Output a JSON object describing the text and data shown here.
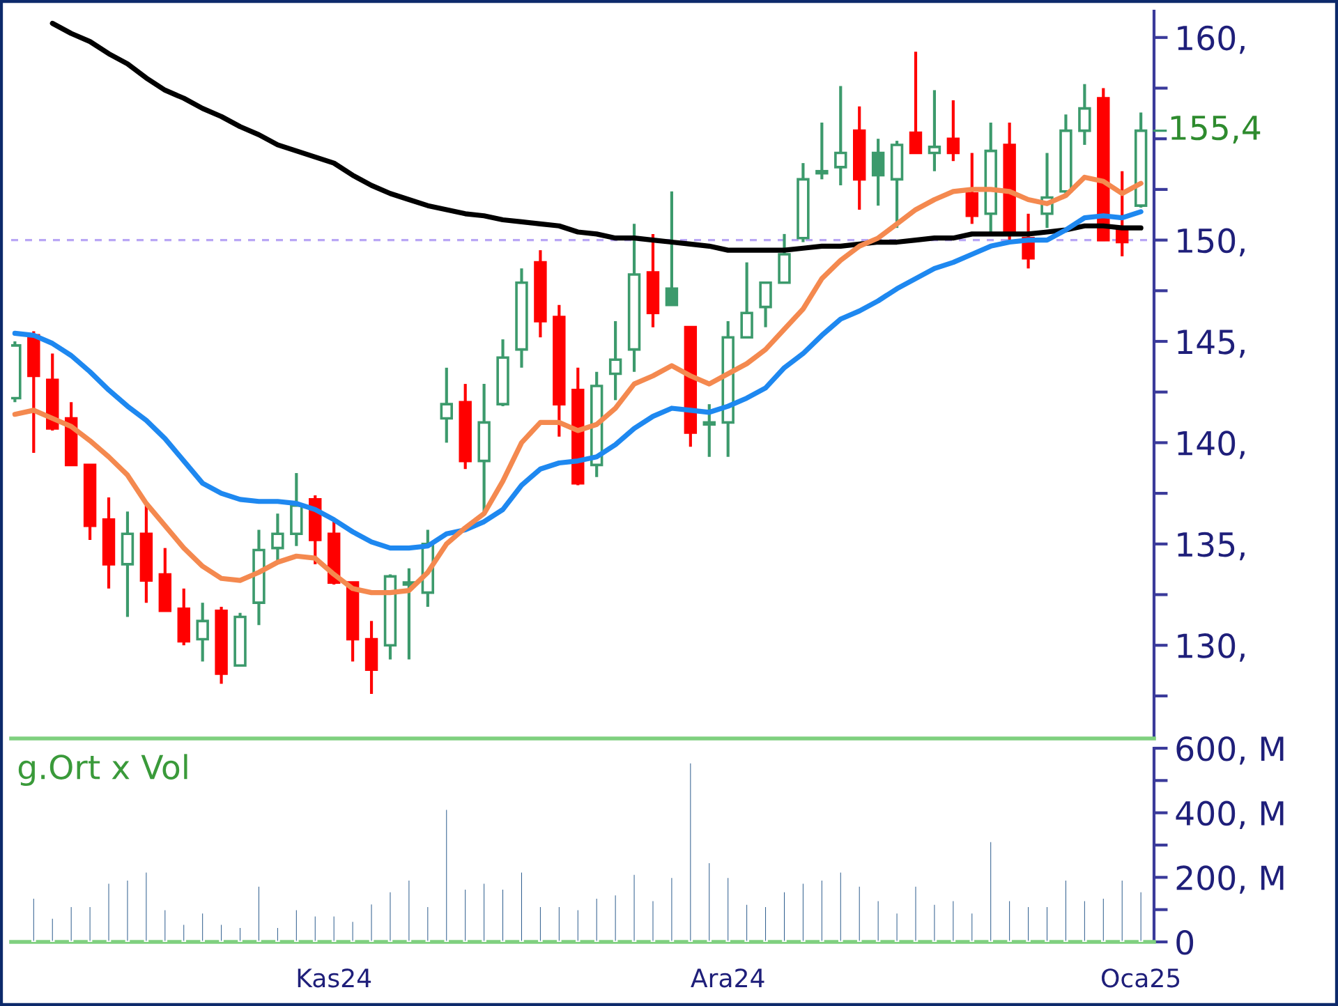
{
  "chart_data": [
    {
      "type": "candlestick",
      "categories": [
        null,
        null,
        null,
        null,
        null,
        null,
        null,
        null,
        null,
        null,
        null,
        null,
        null,
        null,
        null,
        null,
        null,
        null,
        null,
        null,
        null,
        null,
        null,
        null,
        null,
        null,
        null,
        null,
        null,
        null,
        null,
        null,
        null,
        null,
        null,
        null,
        null,
        null,
        null,
        null,
        null,
        null,
        null,
        null,
        null,
        null,
        null,
        null,
        null,
        null,
        null,
        null,
        null,
        null,
        null,
        null,
        null,
        null,
        null,
        null,
        null
      ],
      "ohlc": [
        [
          142.2,
          145.0,
          142.0,
          144.8
        ],
        [
          145.3,
          145.5,
          139.5,
          143.3
        ],
        [
          143.1,
          144.4,
          140.6,
          140.7
        ],
        [
          141.2,
          142.0,
          138.9,
          138.9
        ],
        [
          138.9,
          138.9,
          135.2,
          135.9
        ],
        [
          136.2,
          137.3,
          132.8,
          134.0
        ],
        [
          134.0,
          136.6,
          131.4,
          135.5
        ],
        [
          135.5,
          136.9,
          132.1,
          133.2
        ],
        [
          133.5,
          134.8,
          131.7,
          131.7
        ],
        [
          131.8,
          132.8,
          130.0,
          130.2
        ],
        [
          130.3,
          132.1,
          129.2,
          131.2
        ],
        [
          131.7,
          131.9,
          128.1,
          128.6
        ],
        [
          129.0,
          131.6,
          129.0,
          131.4
        ],
        [
          132.1,
          135.7,
          131.0,
          134.7
        ],
        [
          134.8,
          136.5,
          134.1,
          135.5
        ],
        [
          135.5,
          138.5,
          134.9,
          136.9
        ],
        [
          137.2,
          137.4,
          134.0,
          135.2
        ],
        [
          135.5,
          136.2,
          133.0,
          133.1
        ],
        [
          133.1,
          133.1,
          129.2,
          130.3
        ],
        [
          130.3,
          131.2,
          127.6,
          128.8
        ],
        [
          130.0,
          133.5,
          129.3,
          133.4
        ],
        [
          133.1,
          133.8,
          129.3,
          133.0
        ],
        [
          132.6,
          135.7,
          131.9,
          135.0
        ],
        [
          141.2,
          143.7,
          140.0,
          141.9
        ],
        [
          142.0,
          142.9,
          138.7,
          139.1
        ],
        [
          139.1,
          142.9,
          136.6,
          141.0
        ],
        [
          141.9,
          145.1,
          141.8,
          144.2
        ],
        [
          144.6,
          148.6,
          143.7,
          147.9
        ],
        [
          148.9,
          149.5,
          145.2,
          146.0
        ],
        [
          146.2,
          146.8,
          140.3,
          141.9
        ],
        [
          142.6,
          143.7,
          137.9,
          138.0
        ],
        [
          138.9,
          143.5,
          138.3,
          142.8
        ],
        [
          143.4,
          146.0,
          142.1,
          144.1
        ],
        [
          144.6,
          150.8,
          143.5,
          148.3
        ],
        [
          148.4,
          150.3,
          145.7,
          146.4
        ],
        [
          147.6,
          152.4,
          146.8,
          146.8
        ],
        [
          145.7,
          145.7,
          139.8,
          140.5
        ],
        [
          140.9,
          141.9,
          139.3,
          141.0
        ],
        [
          141.0,
          146.0,
          139.3,
          145.2
        ],
        [
          145.2,
          148.9,
          145.2,
          146.4
        ],
        [
          146.7,
          147.9,
          145.7,
          147.9
        ],
        [
          147.9,
          150.3,
          147.9,
          149.3
        ],
        [
          150.1,
          153.8,
          149.9,
          153.0
        ],
        [
          153.3,
          155.8,
          153.0,
          153.4
        ],
        [
          153.6,
          157.6,
          152.7,
          154.3
        ],
        [
          155.4,
          156.6,
          151.5,
          153.0
        ],
        [
          154.3,
          155.0,
          151.7,
          153.2
        ],
        [
          153.0,
          154.9,
          150.6,
          154.7
        ],
        [
          155.3,
          159.3,
          154.3,
          154.3
        ],
        [
          154.3,
          157.4,
          153.4,
          154.6
        ],
        [
          155.0,
          156.9,
          153.9,
          154.3
        ],
        [
          152.3,
          154.3,
          150.8,
          151.2
        ],
        [
          151.3,
          155.8,
          150.3,
          154.4
        ],
        [
          154.7,
          155.8,
          149.9,
          150.3
        ],
        [
          150.1,
          151.3,
          148.6,
          149.1
        ],
        [
          151.3,
          154.3,
          150.6,
          152.1
        ],
        [
          152.4,
          156.2,
          152.3,
          155.4
        ],
        [
          155.4,
          157.7,
          154.7,
          156.5
        ],
        [
          157.0,
          157.5,
          150.0,
          150.0
        ],
        [
          150.6,
          153.4,
          149.2,
          149.9
        ],
        [
          151.7,
          156.3,
          151.6,
          155.4
        ]
      ],
      "colors": [
        "#3c9a6c",
        "#ff0000",
        "#ff0000",
        "#ff0000",
        "#ff0000",
        "#ff0000",
        "#3c9a6c",
        "#ff0000",
        "#ff0000",
        "#ff0000",
        "#3c9a6c",
        "#ff0000",
        "#3c9a6c",
        "#3c9a6c",
        "#3c9a6c",
        "#3c9a6c",
        "#ff0000",
        "#ff0000",
        "#ff0000",
        "#ff0000",
        "#3c9a6c",
        "#3c9a6c",
        "#3c9a6c",
        "#3c9a6c",
        "#ff0000",
        "#3c9a6c",
        "#3c9a6c",
        "#3c9a6c",
        "#ff0000",
        "#ff0000",
        "#ff0000",
        "#3c9a6c",
        "#3c9a6c",
        "#3c9a6c",
        "#ff0000",
        "#3c9a6c",
        "#ff0000",
        "#3c9a6c",
        "#3c9a6c",
        "#3c9a6c",
        "#3c9a6c",
        "#3c9a6c",
        "#3c9a6c",
        "#3c9a6c",
        "#3c9a6c",
        "#ff0000",
        "#3c9a6c",
        "#3c9a6c",
        "#ff0000",
        "#3c9a6c",
        "#ff0000",
        "#ff0000",
        "#3c9a6c",
        "#ff0000",
        "#ff0000",
        "#3c9a6c",
        "#3c9a6c",
        "#3c9a6c",
        "#ff0000",
        "#ff0000",
        "#3c9a6c"
      ],
      "series": [
        {
          "type": "line",
          "color": "#000000",
          "values": [
            null,
            null,
            160.7,
            160.2,
            159.8,
            159.2,
            158.7,
            158.0,
            157.4,
            157.0,
            156.5,
            156.1,
            155.6,
            155.2,
            154.7,
            154.4,
            154.1,
            153.8,
            153.2,
            152.7,
            152.3,
            152.0,
            151.7,
            151.5,
            151.3,
            151.2,
            151.0,
            150.9,
            150.8,
            150.7,
            150.4,
            150.3,
            150.1,
            150.1,
            150.0,
            149.9,
            149.8,
            149.7,
            149.5,
            149.5,
            149.5,
            149.5,
            149.6,
            149.7,
            149.7,
            149.8,
            149.9,
            149.9,
            150.0,
            150.1,
            150.1,
            150.3,
            150.3,
            150.3,
            150.3,
            150.4,
            150.5,
            150.7,
            150.7,
            150.6,
            150.6
          ]
        },
        {
          "type": "line",
          "color": "#1e88f0",
          "values": [
            145.4,
            145.3,
            144.9,
            144.3,
            143.5,
            142.6,
            141.8,
            141.1,
            140.2,
            139.1,
            138.0,
            137.5,
            137.2,
            137.1,
            137.1,
            137.0,
            136.7,
            136.2,
            135.6,
            135.1,
            134.8,
            134.8,
            134.9,
            135.5,
            135.7,
            136.1,
            136.7,
            137.9,
            138.7,
            139.0,
            139.1,
            139.3,
            139.9,
            140.7,
            141.3,
            141.7,
            141.6,
            141.5,
            141.8,
            142.2,
            142.7,
            143.7,
            144.4,
            145.3,
            146.1,
            146.5,
            147.0,
            147.6,
            148.1,
            148.6,
            148.9,
            149.3,
            149.7,
            149.9,
            150.0,
            150.0,
            150.5,
            151.1,
            151.2,
            151.1,
            151.4
          ]
        },
        {
          "type": "line",
          "color": "#f4894f",
          "values": [
            141.4,
            141.6,
            141.2,
            140.8,
            140.1,
            139.3,
            138.4,
            137.0,
            135.9,
            134.8,
            133.9,
            133.3,
            133.2,
            133.6,
            134.1,
            134.4,
            134.3,
            133.5,
            132.8,
            132.6,
            132.6,
            132.7,
            133.6,
            135.0,
            135.8,
            136.5,
            138.1,
            140.0,
            141.0,
            141.0,
            140.6,
            140.9,
            141.7,
            142.9,
            143.3,
            143.8,
            143.3,
            142.9,
            143.4,
            143.9,
            144.6,
            145.6,
            146.6,
            148.1,
            149.0,
            149.7,
            150.1,
            150.8,
            151.5,
            152.0,
            152.4,
            152.5,
            152.5,
            152.4,
            152.0,
            151.8,
            152.2,
            153.1,
            152.9,
            152.3,
            152.8
          ]
        }
      ],
      "ref_lines": [
        {
          "axis": "y",
          "value": 150,
          "color": "#b9a6f5",
          "line_style": "dashed"
        }
      ],
      "annotations": [
        "155,4"
      ],
      "ylim": [
        125.4,
        161.3
      ],
      "yticks": [
        {
          "value": 127.5,
          "label": null
        },
        {
          "value": 130,
          "label": "130,"
        },
        {
          "value": 132.5,
          "label": null
        },
        {
          "value": 135,
          "label": "135,"
        },
        {
          "value": 137.5,
          "label": null
        },
        {
          "value": 140,
          "label": "140,"
        },
        {
          "value": 142.5,
          "label": null
        },
        {
          "value": 145,
          "label": "145,"
        },
        {
          "value": 147.5,
          "label": null
        },
        {
          "value": 150,
          "label": "150,"
        },
        {
          "value": 152.5,
          "label": null
        },
        {
          "value": 155,
          "label": null
        },
        {
          "value": 157.5,
          "label": null
        },
        {
          "value": 160,
          "label": "160,"
        }
      ],
      "grid": false
    },
    {
      "type": "bar",
      "title": "g.Ort x Vol",
      "categories": [
        null,
        null,
        null,
        null,
        null,
        null,
        null,
        null,
        null,
        null,
        null,
        null,
        null,
        null,
        null,
        null,
        null,
        "Kas24",
        null,
        null,
        null,
        null,
        null,
        null,
        null,
        null,
        null,
        null,
        null,
        null,
        null,
        null,
        null,
        null,
        null,
        null,
        null,
        null,
        "Ara24",
        null,
        null,
        null,
        null,
        null,
        null,
        null,
        null,
        null,
        null,
        null,
        null,
        null,
        null,
        null,
        null,
        null,
        null,
        null,
        null,
        null,
        "Oca25"
      ],
      "values": [
        null,
        137,
        75,
        111,
        111,
        183,
        193,
        218,
        101,
        56,
        91,
        56,
        46,
        174,
        46,
        101,
        82,
        82,
        65,
        119,
        157,
        193,
        111,
        412,
        165,
        183,
        165,
        218,
        111,
        111,
        101,
        137,
        147,
        211,
        129,
        201,
        556,
        247,
        201,
        118,
        111,
        157,
        183,
        193,
        218,
        174,
        129,
        91,
        174,
        118,
        129,
        91,
        312,
        129,
        111,
        111,
        193,
        129,
        137,
        193,
        157
      ],
      "color": "#2b5b8c",
      "ylim": [
        0,
        600
      ],
      "yticks": [
        {
          "value": 0,
          "label": "0"
        },
        {
          "value": 100,
          "label": null
        },
        {
          "value": 200,
          "label": "200, M"
        },
        {
          "value": 300,
          "label": null
        },
        {
          "value": 400,
          "label": "400, M"
        },
        {
          "value": 500,
          "label": null
        },
        {
          "value": 600,
          "label": "600, M"
        }
      ]
    }
  ]
}
